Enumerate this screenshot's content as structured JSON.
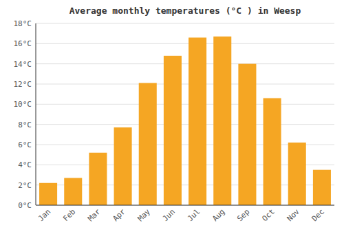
{
  "chart_data": {
    "type": "bar",
    "title": "Average monthly temperatures (°C ) in Weesp",
    "categories": [
      "Jan",
      "Feb",
      "Mar",
      "Apr",
      "May",
      "Jun",
      "Jul",
      "Aug",
      "Sep",
      "Oct",
      "Nov",
      "Dec"
    ],
    "values": [
      2.2,
      2.7,
      5.2,
      7.7,
      12.1,
      14.8,
      16.6,
      16.7,
      14.0,
      10.6,
      6.2,
      3.5
    ],
    "color": "#F5A623",
    "ylim": [
      0,
      18
    ],
    "yticks": [
      {
        "value": 0,
        "label": "0°C"
      },
      {
        "value": 2,
        "label": "2°C"
      },
      {
        "value": 4,
        "label": "4°C"
      },
      {
        "value": 6,
        "label": "6°C"
      },
      {
        "value": 8,
        "label": "8°C"
      },
      {
        "value": 10,
        "label": "10°C"
      },
      {
        "value": 12,
        "label": "12°C"
      },
      {
        "value": 14,
        "label": "14°C"
      },
      {
        "value": 16,
        "label": "16°C"
      },
      {
        "value": 18,
        "label": "18°C"
      }
    ],
    "grid": true
  }
}
